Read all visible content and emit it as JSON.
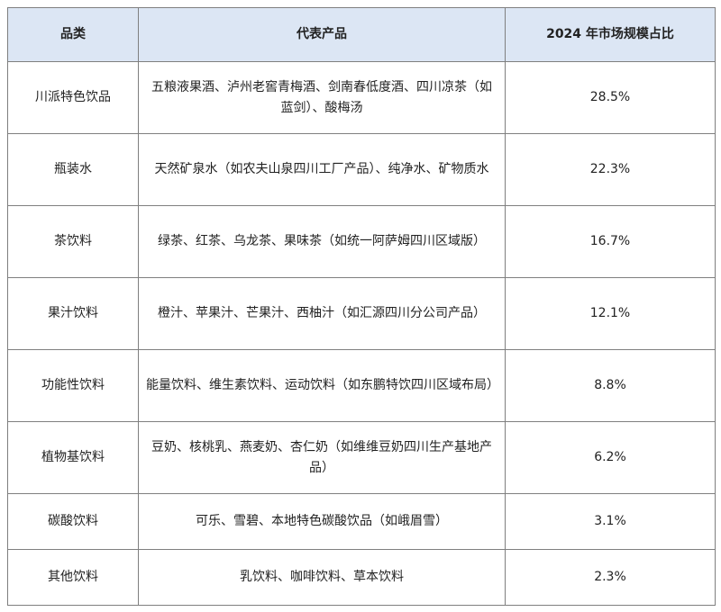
{
  "table": {
    "header": [
      "品类",
      "代表产品",
      "2024 年市场规模占比"
    ],
    "rows": [
      [
        "川派特色饮品",
        "五粮液果酒、泸州老窖青梅酒、剑南春低度酒、四川凉茶（如蓝剑）、酸梅汤",
        "28.5%"
      ],
      [
        "瓶装水",
        "天然矿泉水（如农夫山泉四川工厂产品）、纯净水、矿物质水",
        "22.3%"
      ],
      [
        "茶饮料",
        "绿茶、红茶、乌龙茶、果味茶（如统一阿萨姆四川区域版）",
        "16.7%"
      ],
      [
        "果汁饮料",
        "橙汁、苹果汁、芒果汁、西柚汁（如汇源四川分公司产品）",
        "12.1%"
      ],
      [
        "功能性饮料",
        "能量饮料、维生素饮料、运动饮料（如东鹏特饮四川区域布局）",
        "8.8%"
      ],
      [
        "植物基饮料",
        "豆奶、核桃乳、燕麦奶、杏仁奶（如维维豆奶四川生产基地产品）",
        "6.2%"
      ],
      [
        "碳酸饮料",
        "可乐、雪碧、本地特色碳酸饮品（如峨眉雪）",
        "3.1%"
      ],
      [
        "其他饮料",
        "乳饮料、咖啡饮料、草本饮料",
        "2.3%"
      ]
    ]
  }
}
